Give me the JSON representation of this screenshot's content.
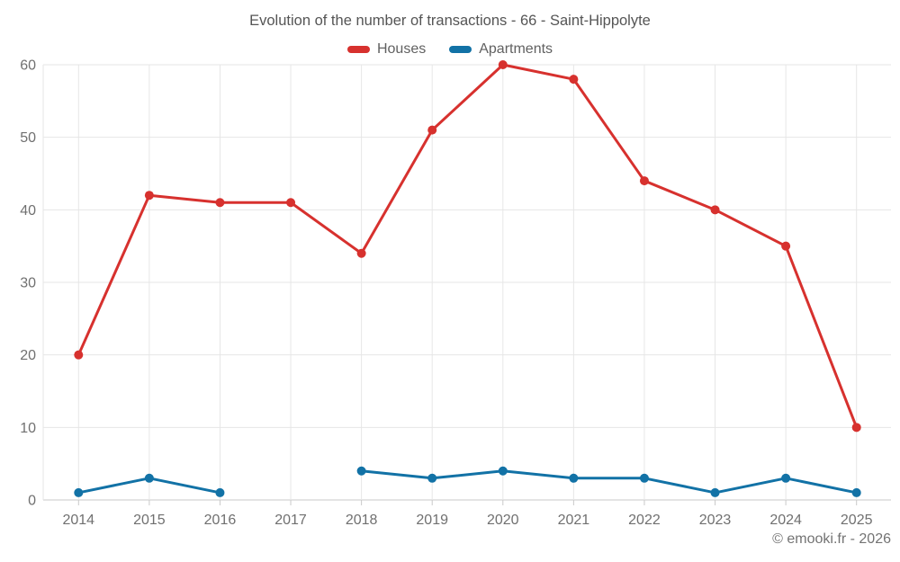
{
  "title": "Evolution of the number of transactions - 66 - Saint-Hippolyte",
  "footer": "© emooki.fr - 2026",
  "chart_data": {
    "type": "line",
    "title": "Evolution of the number of transactions - 66 - Saint-Hippolyte",
    "xlabel": "",
    "ylabel": "",
    "categories": [
      "2014",
      "2015",
      "2016",
      "2017",
      "2018",
      "2019",
      "2020",
      "2021",
      "2022",
      "2023",
      "2024",
      "2025"
    ],
    "series": [
      {
        "name": "Houses",
        "color": "#d7312e",
        "values": [
          20,
          42,
          41,
          41,
          34,
          51,
          60,
          58,
          44,
          40,
          35,
          10
        ]
      },
      {
        "name": "Apartments",
        "color": "#1272a6",
        "values": [
          1,
          3,
          1,
          null,
          4,
          3,
          4,
          3,
          3,
          1,
          3,
          1
        ]
      }
    ],
    "ylim": [
      0,
      60
    ],
    "y_ticks": [
      0,
      10,
      20,
      30,
      40,
      50,
      60
    ],
    "grid": "on",
    "legend_position": "top"
  },
  "style_colors": {
    "gridline": "#e6e6e6",
    "axis_line": "#c9c9c9",
    "axis_label_text": "#707070"
  }
}
